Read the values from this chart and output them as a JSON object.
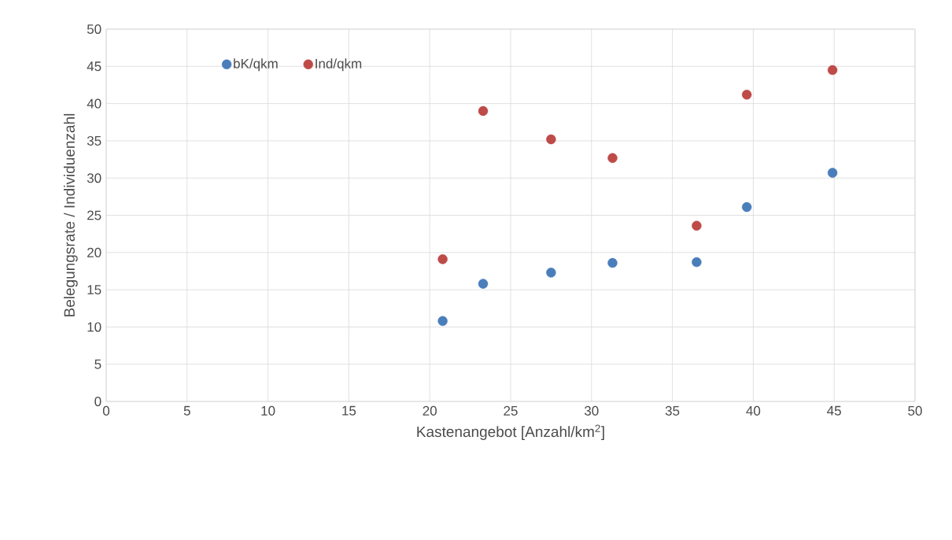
{
  "chart_data": {
    "type": "scatter",
    "xlabel": "Kastenangebot [Anzahl/km$^{2}$]",
    "ylabel": "Belegungsrate / Individuenzahl",
    "series": [
      {
        "name": "bK/qkm",
        "color": "#4a7ebb",
        "x": [
          20.8,
          23.3,
          27.5,
          31.3,
          36.5,
          39.6,
          44.9
        ],
        "values": [
          10.8,
          15.8,
          17.3,
          18.6,
          18.7,
          26.1,
          30.7
        ]
      },
      {
        "name": "Ind/qkm",
        "color": "#be4b48",
        "x": [
          20.8,
          23.3,
          27.5,
          31.3,
          36.5,
          39.6,
          44.9
        ],
        "values": [
          19.1,
          39.0,
          35.2,
          32.7,
          23.6,
          41.2,
          44.5
        ]
      }
    ],
    "xlim": [
      0,
      50
    ],
    "xticks": [
      0,
      5,
      10,
      15,
      20,
      25,
      30,
      35,
      40,
      45,
      50
    ],
    "ylim": [
      0,
      50
    ],
    "yticks": [
      0,
      5,
      10,
      15,
      20,
      25,
      30,
      35,
      40,
      45,
      50
    ],
    "grid": true,
    "legend": "top left",
    "marker": "circle"
  }
}
